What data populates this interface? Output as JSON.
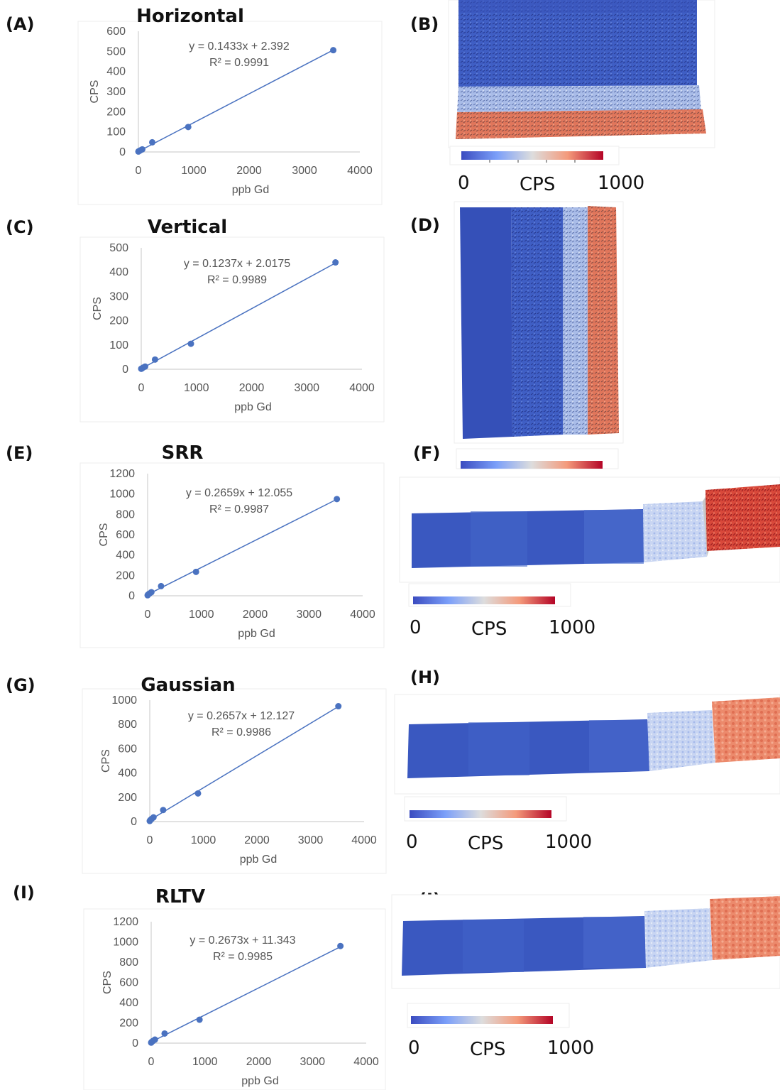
{
  "panels": {
    "a": "(A)",
    "b": "(B)",
    "c": "(C)",
    "d": "(D)",
    "e": "(E)",
    "f": "(F)",
    "g": "(G)",
    "h": "(H)",
    "i": "(I)",
    "j": "(J)"
  },
  "colorbar": {
    "min": "0",
    "label": "CPS",
    "max": "1000",
    "low_color": "#3b4cc0",
    "mid_color": "#dddddd",
    "high_color": "#b40426"
  },
  "chart_data": [
    {
      "type": "scatter",
      "title": "Horizontal",
      "xlabel": "ppb Gd",
      "ylabel": "CPS",
      "xlim": [
        0,
        4000
      ],
      "ylim": [
        0,
        600
      ],
      "xticks": [
        "0",
        "1000",
        "2000",
        "3000",
        "4000"
      ],
      "yticks": [
        "0",
        "100",
        "200",
        "300",
        "400",
        "500",
        "600"
      ],
      "equation": "y = 0.1433x + 2.392",
      "r2": "R² = 0.9991",
      "trendline": {
        "slope": 0.1433,
        "intercept": 2.392
      },
      "points": [
        [
          0,
          2
        ],
        [
          10,
          4
        ],
        [
          35,
          8
        ],
        [
          70,
          13
        ],
        [
          250,
          48
        ],
        [
          900,
          124
        ],
        [
          3520,
          506
        ]
      ],
      "color": "#4a72c0"
    },
    {
      "type": "scatter",
      "title": "Vertical",
      "xlabel": "ppb Gd",
      "ylabel": "CPS",
      "xlim": [
        0,
        4000
      ],
      "ylim": [
        0,
        500
      ],
      "xticks": [
        "0",
        "1000",
        "2000",
        "3000",
        "4000"
      ],
      "yticks": [
        "0",
        "100",
        "200",
        "300",
        "400",
        "500"
      ],
      "equation": "y = 0.1237x + 2.0175",
      "r2": "R² = 0.9989",
      "trendline": {
        "slope": 0.1237,
        "intercept": 2.0175
      },
      "points": [
        [
          0,
          2
        ],
        [
          10,
          3
        ],
        [
          35,
          7
        ],
        [
          70,
          11
        ],
        [
          250,
          40
        ],
        [
          900,
          105
        ],
        [
          3520,
          440
        ]
      ],
      "color": "#4a72c0"
    },
    {
      "type": "scatter",
      "title": "SRR",
      "xlabel": "ppb Gd",
      "ylabel": "CPS",
      "xlim": [
        0,
        4000
      ],
      "ylim": [
        0,
        1200
      ],
      "xticks": [
        "0",
        "1000",
        "2000",
        "3000",
        "4000"
      ],
      "yticks": [
        "0",
        "200",
        "400",
        "600",
        "800",
        "1000",
        "1200"
      ],
      "equation": "y = 0.2659x + 12.055",
      "r2": "R² = 0.9987",
      "trendline": {
        "slope": 0.2659,
        "intercept": 12.055
      },
      "points": [
        [
          0,
          5
        ],
        [
          10,
          12
        ],
        [
          35,
          22
        ],
        [
          70,
          35
        ],
        [
          250,
          95
        ],
        [
          900,
          235
        ],
        [
          3520,
          950
        ]
      ],
      "color": "#4a72c0"
    },
    {
      "type": "scatter",
      "title": "Gaussian",
      "xlabel": "ppb Gd",
      "ylabel": "CPS",
      "xlim": [
        0,
        4000
      ],
      "ylim": [
        0,
        1000
      ],
      "xticks": [
        "0",
        "1000",
        "2000",
        "3000",
        "4000"
      ],
      "yticks": [
        "0",
        "200",
        "400",
        "600",
        "800",
        "1000"
      ],
      "equation": "y = 0.2657x + 12.127",
      "r2": "R² = 0.9986",
      "trendline": {
        "slope": 0.2657,
        "intercept": 12.127
      },
      "points": [
        [
          0,
          5
        ],
        [
          10,
          12
        ],
        [
          35,
          22
        ],
        [
          70,
          35
        ],
        [
          250,
          95
        ],
        [
          900,
          232
        ],
        [
          3520,
          950
        ]
      ],
      "color": "#4a72c0"
    },
    {
      "type": "scatter",
      "title": "RLTV",
      "xlabel": "ppb Gd",
      "ylabel": "CPS",
      "xlim": [
        0,
        4000
      ],
      "ylim": [
        0,
        1200
      ],
      "xticks": [
        "0",
        "1000",
        "2000",
        "3000",
        "4000"
      ],
      "yticks": [
        "0",
        "200",
        "400",
        "600",
        "800",
        "1000",
        "1200"
      ],
      "equation": "y = 0.2673x + 11.343",
      "r2": "R² = 0.9985",
      "trendline": {
        "slope": 0.2673,
        "intercept": 11.343
      },
      "points": [
        [
          0,
          5
        ],
        [
          10,
          12
        ],
        [
          35,
          22
        ],
        [
          70,
          35
        ],
        [
          250,
          95
        ],
        [
          900,
          232
        ],
        [
          3520,
          960
        ]
      ],
      "color": "#4a72c0"
    }
  ]
}
